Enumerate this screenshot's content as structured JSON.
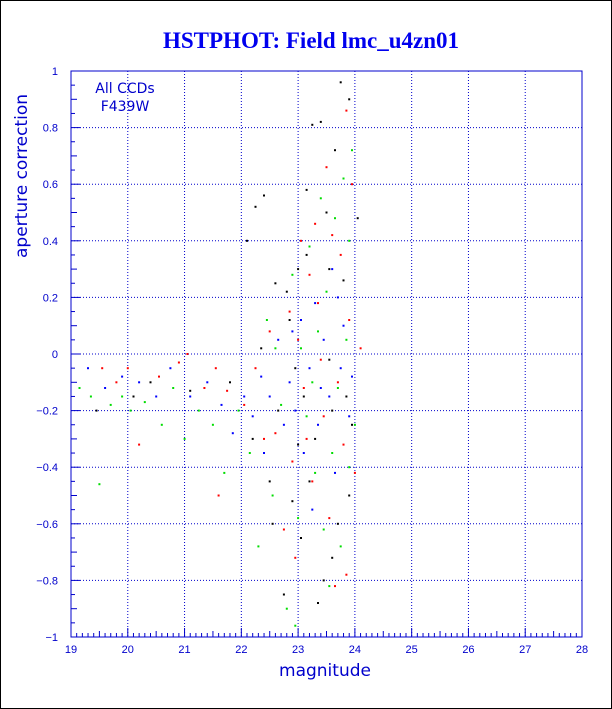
{
  "chart_data": {
    "type": "scatter",
    "title": "HSTPHOT: Field lmc_u4zn01",
    "xlabel": "magnitude",
    "ylabel": "aperture correction",
    "xlim": [
      19,
      28
    ],
    "ylim": [
      -1,
      1
    ],
    "x_ticks": [
      19,
      20,
      21,
      22,
      23,
      24,
      25,
      26,
      27,
      28
    ],
    "y_ticks": [
      -1,
      -0.8,
      -0.6,
      -0.4,
      -0.2,
      0,
      0.2,
      0.4,
      0.6,
      0.8,
      1
    ],
    "x_tick_labels": [
      "19",
      "20",
      "21",
      "22",
      "23",
      "24",
      "25",
      "26",
      "27",
      "28"
    ],
    "y_tick_labels": [
      "−1",
      "−0.8",
      "−0.6",
      "−0.4",
      "−0.2",
      "0",
      "0.2",
      "0.4",
      "0.6",
      "0.8",
      "1"
    ],
    "grid": true,
    "annotations": [
      "All CCDs",
      "F439W"
    ],
    "colors": {
      "axis": "#0000cc",
      "title": "#0000ee",
      "grid": "#0000cc",
      "series": [
        "#000000",
        "#ff0000",
        "#00dd00",
        "#0000ff"
      ]
    },
    "series": [
      {
        "color": "#000000",
        "points": [
          [
            19.45,
            -0.2
          ],
          [
            20.1,
            -0.15
          ],
          [
            20.4,
            -0.1
          ],
          [
            21.1,
            -0.13
          ],
          [
            21.8,
            -0.1
          ],
          [
            22.1,
            0.4
          ],
          [
            22.2,
            -0.3
          ],
          [
            22.25,
            0.52
          ],
          [
            22.35,
            0.02
          ],
          [
            22.4,
            0.56
          ],
          [
            22.5,
            -0.45
          ],
          [
            22.55,
            -0.6
          ],
          [
            22.6,
            0.25
          ],
          [
            22.65,
            -0.2
          ],
          [
            22.75,
            -0.85
          ],
          [
            22.8,
            0.22
          ],
          [
            22.9,
            -0.52
          ],
          [
            22.95,
            -0.05
          ],
          [
            23.0,
            0.3
          ],
          [
            23.05,
            -0.65
          ],
          [
            23.1,
            -0.15
          ],
          [
            23.15,
            0.35
          ],
          [
            23.2,
            -0.45
          ],
          [
            23.25,
            0.81
          ],
          [
            23.3,
            -0.3
          ],
          [
            23.4,
            0.82
          ],
          [
            23.45,
            -0.8
          ],
          [
            23.5,
            0.5
          ],
          [
            23.55,
            -0.02
          ],
          [
            23.6,
            -0.2
          ],
          [
            23.65,
            0.72
          ],
          [
            23.7,
            -0.6
          ],
          [
            23.75,
            0.96
          ],
          [
            23.8,
            0.26
          ],
          [
            23.85,
            -0.15
          ],
          [
            23.9,
            0.9
          ],
          [
            23.95,
            -0.25
          ],
          [
            24.05,
            0.48
          ],
          [
            23.35,
            -0.88
          ],
          [
            23.55,
            0.3
          ],
          [
            22.85,
            0.12
          ],
          [
            23.0,
            -0.32
          ],
          [
            23.6,
            -0.72
          ],
          [
            23.15,
            0.58
          ],
          [
            23.9,
            -0.5
          ]
        ]
      },
      {
        "color": "#ff0000",
        "points": [
          [
            19.55,
            -0.05
          ],
          [
            19.8,
            -0.1
          ],
          [
            20.0,
            -0.05
          ],
          [
            20.2,
            -0.32
          ],
          [
            20.55,
            -0.08
          ],
          [
            20.9,
            -0.03
          ],
          [
            21.05,
            0.0
          ],
          [
            21.35,
            -0.12
          ],
          [
            21.55,
            -0.05
          ],
          [
            21.75,
            -0.13
          ],
          [
            21.6,
            -0.5
          ],
          [
            22.05,
            -0.18
          ],
          [
            22.25,
            -0.05
          ],
          [
            22.5,
            0.08
          ],
          [
            22.6,
            -0.28
          ],
          [
            22.75,
            -0.62
          ],
          [
            22.85,
            0.15
          ],
          [
            22.9,
            -0.38
          ],
          [
            23.0,
            0.05
          ],
          [
            23.1,
            -0.12
          ],
          [
            23.2,
            0.28
          ],
          [
            23.25,
            -0.45
          ],
          [
            23.35,
            0.18
          ],
          [
            23.45,
            -0.22
          ],
          [
            23.5,
            0.66
          ],
          [
            23.55,
            -0.58
          ],
          [
            23.6,
            0.42
          ],
          [
            23.7,
            -0.1
          ],
          [
            23.75,
            0.35
          ],
          [
            23.8,
            -0.32
          ],
          [
            23.85,
            -0.78
          ],
          [
            23.9,
            0.12
          ],
          [
            23.95,
            0.6
          ],
          [
            24.0,
            -0.42
          ],
          [
            24.1,
            0.02
          ],
          [
            23.3,
            0.46
          ],
          [
            22.95,
            -0.72
          ],
          [
            23.4,
            -0.02
          ],
          [
            23.65,
            -0.82
          ],
          [
            23.15,
            -0.3
          ],
          [
            23.85,
            0.86
          ],
          [
            22.4,
            -0.3
          ],
          [
            23.05,
            0.4
          ]
        ]
      },
      {
        "color": "#00dd00",
        "points": [
          [
            19.15,
            -0.12
          ],
          [
            19.35,
            -0.15
          ],
          [
            19.5,
            -0.46
          ],
          [
            19.7,
            -0.18
          ],
          [
            19.9,
            -0.15
          ],
          [
            20.05,
            -0.2
          ],
          [
            20.3,
            -0.17
          ],
          [
            20.6,
            -0.25
          ],
          [
            20.8,
            -0.12
          ],
          [
            21.0,
            -0.3
          ],
          [
            21.25,
            -0.2
          ],
          [
            21.5,
            -0.25
          ],
          [
            21.7,
            -0.42
          ],
          [
            21.95,
            -0.2
          ],
          [
            22.15,
            -0.35
          ],
          [
            22.3,
            -0.68
          ],
          [
            22.45,
            0.12
          ],
          [
            22.55,
            -0.5
          ],
          [
            22.7,
            -0.18
          ],
          [
            22.8,
            -0.9
          ],
          [
            22.9,
            0.28
          ],
          [
            23.0,
            -0.58
          ],
          [
            23.05,
            0.02
          ],
          [
            23.15,
            -0.22
          ],
          [
            23.2,
            0.38
          ],
          [
            23.3,
            -0.42
          ],
          [
            23.35,
            0.08
          ],
          [
            23.45,
            -0.62
          ],
          [
            23.5,
            0.22
          ],
          [
            23.6,
            -0.35
          ],
          [
            23.65,
            0.48
          ],
          [
            23.7,
            -0.12
          ],
          [
            23.75,
            -0.68
          ],
          [
            23.8,
            0.62
          ],
          [
            23.85,
            0.05
          ],
          [
            23.9,
            -0.4
          ],
          [
            23.95,
            0.72
          ],
          [
            24.0,
            -0.25
          ],
          [
            22.95,
            -0.96
          ],
          [
            23.4,
            0.55
          ],
          [
            22.6,
            0.02
          ],
          [
            23.55,
            -0.82
          ],
          [
            23.25,
            -0.1
          ],
          [
            23.9,
            0.4
          ]
        ]
      },
      {
        "color": "#0000ff",
        "points": [
          [
            19.3,
            -0.05
          ],
          [
            19.6,
            -0.12
          ],
          [
            19.9,
            -0.08
          ],
          [
            20.2,
            -0.1
          ],
          [
            20.5,
            -0.15
          ],
          [
            20.75,
            -0.05
          ],
          [
            21.1,
            -0.15
          ],
          [
            21.4,
            -0.1
          ],
          [
            21.65,
            -0.18
          ],
          [
            21.85,
            -0.28
          ],
          [
            22.05,
            -0.15
          ],
          [
            22.2,
            -0.22
          ],
          [
            22.35,
            -0.08
          ],
          [
            22.5,
            -0.15
          ],
          [
            22.65,
            0.05
          ],
          [
            22.75,
            -0.25
          ],
          [
            22.85,
            -0.1
          ],
          [
            22.95,
            -0.2
          ],
          [
            23.05,
            0.12
          ],
          [
            23.1,
            -0.35
          ],
          [
            23.2,
            -0.05
          ],
          [
            23.3,
            0.18
          ],
          [
            23.35,
            -0.25
          ],
          [
            23.45,
            0.05
          ],
          [
            23.55,
            -0.15
          ],
          [
            23.6,
            0.3
          ],
          [
            23.65,
            -0.42
          ],
          [
            23.75,
            -0.05
          ],
          [
            23.8,
            0.1
          ],
          [
            23.9,
            -0.22
          ],
          [
            23.95,
            -0.08
          ],
          [
            23.25,
            -0.55
          ],
          [
            23.7,
            0.2
          ],
          [
            22.9,
            0.08
          ],
          [
            23.4,
            -0.12
          ],
          [
            22.4,
            -0.35
          ]
        ]
      }
    ]
  }
}
